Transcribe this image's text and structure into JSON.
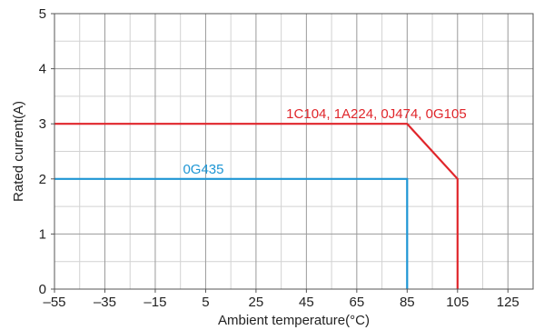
{
  "chart_data": {
    "type": "line",
    "title": "",
    "xlabel": "Ambient temperature(°C)",
    "ylabel": "Rated current(A)",
    "xlim": [
      -55,
      135
    ],
    "ylim": [
      0,
      5
    ],
    "x_ticks": [
      -55,
      -35,
      -15,
      5,
      25,
      45,
      65,
      85,
      105,
      125
    ],
    "x_tick_labels": [
      "–55",
      "–35",
      "–15",
      "5",
      "25",
      "45",
      "65",
      "85",
      "105",
      "125"
    ],
    "y_ticks": [
      0,
      1,
      2,
      3,
      4,
      5
    ],
    "y_tick_labels": [
      "0",
      "1",
      "2",
      "3",
      "4",
      "5"
    ],
    "grid": true,
    "series": [
      {
        "name": "1C104, 1A224, 0J474, 0G105",
        "color": "#e0262b",
        "x": [
          -55,
          85,
          105,
          105
        ],
        "y": [
          3,
          3,
          2,
          0
        ],
        "label_at": [
          37,
          3
        ]
      },
      {
        "name": "0G435",
        "color": "#1e96d4",
        "x": [
          -55,
          85,
          85
        ],
        "y": [
          2,
          2,
          0
        ],
        "label_at": [
          -4,
          2
        ]
      }
    ]
  }
}
